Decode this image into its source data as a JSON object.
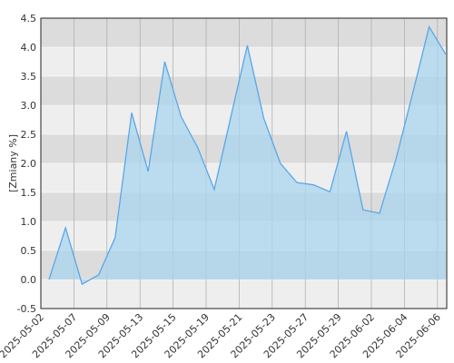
{
  "chart_data": {
    "type": "area",
    "y_label": "[Zmiany %]",
    "x": [
      "2025-05-02",
      "2025-05-06",
      "2025-05-07",
      "2025-05-08",
      "2025-05-09",
      "2025-05-12",
      "2025-05-13",
      "2025-05-14",
      "2025-05-15",
      "2025-05-16",
      "2025-05-19",
      "2025-05-20",
      "2025-05-21",
      "2025-05-22",
      "2025-05-23",
      "2025-05-26",
      "2025-05-27",
      "2025-05-28",
      "2025-05-29",
      "2025-05-30",
      "2025-06-02",
      "2025-06-03",
      "2025-06-04",
      "2025-06-05",
      "2025-06-06"
    ],
    "values": [
      0.0,
      0.89,
      -0.08,
      0.08,
      0.72,
      2.87,
      1.86,
      3.75,
      2.8,
      2.27,
      1.55,
      2.8,
      4.03,
      2.77,
      2.0,
      1.67,
      1.63,
      1.51,
      2.55,
      1.2,
      1.14,
      2.08,
      3.2,
      4.35,
      3.88
    ],
    "xticks": [
      "2025-05-02",
      "2025-05-07",
      "2025-05-09",
      "2025-05-13",
      "2025-05-15",
      "2025-05-19",
      "2025-05-21",
      "2025-05-23",
      "2025-05-27",
      "2025-05-29",
      "2025-06-02",
      "2025-06-04",
      "2025-06-06"
    ],
    "ylim": [
      -0.5,
      4.5
    ],
    "yticks": [
      -0.5,
      {
        "value": 0,
        "label": "0.0"
      },
      0.5,
      {
        "value": 1,
        "label": "1.0"
      },
      1.5,
      {
        "value": 2,
        "label": "2.0"
      },
      2.5,
      {
        "value": 3,
        "label": "3.0"
      },
      3.5,
      {
        "value": 4,
        "label": "4.0"
      },
      4.5
    ],
    "line_color": "#5aa7e8",
    "fill_color": "#a8d6ee",
    "grid": true
  }
}
